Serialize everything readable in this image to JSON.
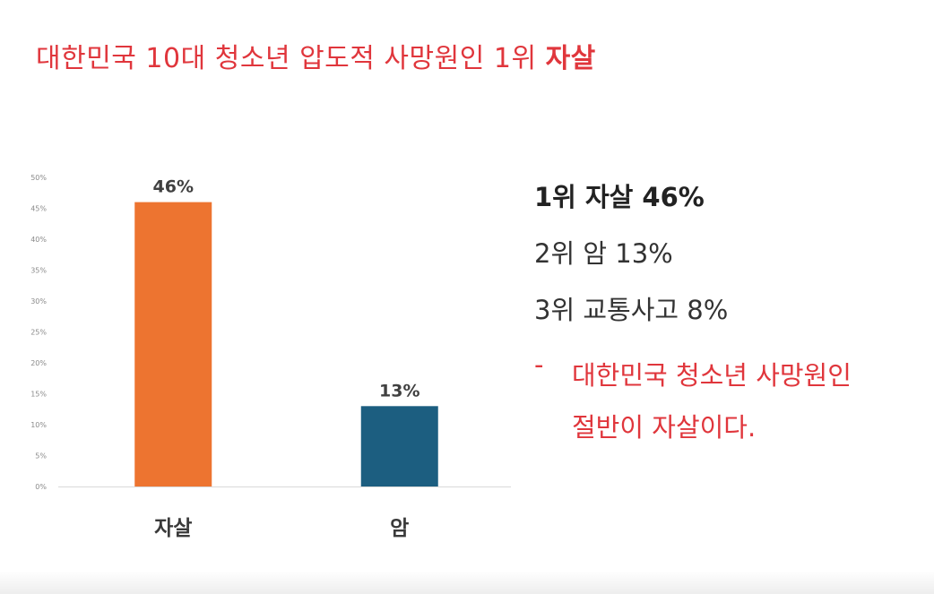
{
  "title": {
    "prefix": "대한민국 10대 청소년 압도적 사망원인 1위 ",
    "emphasis": "자살",
    "color": "#e0363c"
  },
  "chart_data": {
    "type": "bar",
    "categories": [
      "자살",
      "암"
    ],
    "values": [
      46,
      13
    ],
    "data_labels": [
      "46%",
      "13%"
    ],
    "bar_colors": [
      "#ed7430",
      "#1c5e80"
    ],
    "ylim": [
      0,
      50
    ],
    "y_ticks": [
      "0%",
      "5%",
      "10%",
      "15%",
      "20%",
      "25%",
      "30%",
      "35%",
      "40%",
      "45%",
      "50%"
    ],
    "title": "",
    "xlabel": "",
    "ylabel": "",
    "grid": false,
    "legend": "none"
  },
  "ranking": [
    "1위 자살 46%",
    "2위 암 13%",
    "3위 교통사고 8%"
  ],
  "note": {
    "dash": "-",
    "line1": "대한민국 청소년 사망원인",
    "line2": "절반이 자살이다.",
    "color": "#e0363c"
  }
}
